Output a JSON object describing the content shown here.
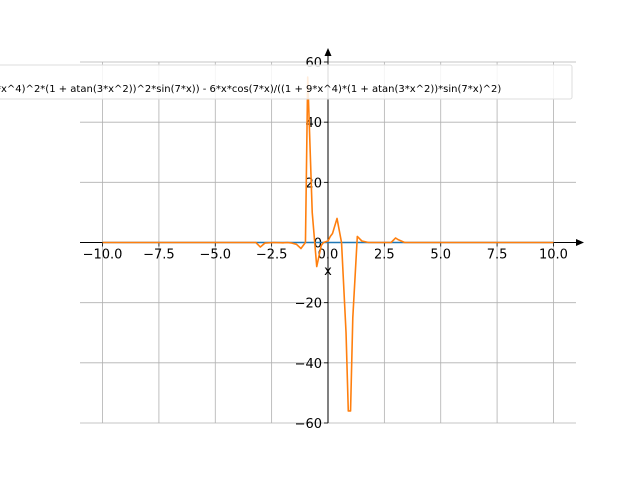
{
  "chart_data": {
    "type": "line",
    "title": "",
    "xlabel": "x",
    "ylabel": "",
    "xlim": [
      -11.0,
      11.0
    ],
    "ylim": [
      -60,
      60
    ],
    "grid": true,
    "legend_position": "top",
    "x_ticks": [
      -10.0,
      -7.5,
      -5.0,
      -2.5,
      0.0,
      2.5,
      5.0,
      7.5,
      10.0
    ],
    "x_tick_labels": [
      "−10.0",
      "−7.5",
      "−5.0",
      "−2.5",
      "0.0",
      "2.5",
      "5.0",
      "7.5",
      "10.0"
    ],
    "y_ticks": [
      -60,
      -40,
      -20,
      0,
      20,
      40,
      60
    ],
    "y_tick_labels": [
      "−60",
      "−40",
      "−20",
      "0",
      "20",
      "40",
      "60"
    ],
    "legend_text": "*x^4)^2*(1 + atan(3*x^2))^2*sin(7*x)) - 6*x*cos(7*x)/((1 + 9*x^4)*(1 + atan(3*x^2))*sin(7*x)^2)",
    "series": [
      {
        "color": "#1f77b4",
        "x": [
          -10,
          -5,
          -1.5,
          -1,
          -0.5,
          0,
          0.5,
          1,
          1.5,
          5,
          10
        ],
        "y": [
          0,
          0,
          0,
          0,
          0,
          0,
          0,
          0,
          0,
          0,
          0
        ]
      },
      {
        "color": "#ff7f0e",
        "x": [
          -10,
          -4,
          -3.2,
          -3.0,
          -2.8,
          -2.4,
          -2.0,
          -1.8,
          -1.6,
          -1.4,
          -1.2,
          -1.0,
          -0.9,
          -0.7,
          -0.5,
          -0.3,
          -0.2,
          0.0,
          0.1,
          0.2,
          0.4,
          0.6,
          0.8,
          0.9,
          1.0,
          1.1,
          1.3,
          1.5,
          1.8,
          2.2,
          2.8,
          3.0,
          3.1,
          3.4,
          4.0,
          10
        ],
        "y": [
          0,
          0,
          0,
          -1.5,
          -0.2,
          0,
          -0.1,
          0,
          -0.2,
          -0.6,
          -2.0,
          0,
          55,
          10,
          -8,
          -1,
          0,
          0.5,
          2,
          3,
          8,
          0,
          -30,
          -56,
          -56,
          -25,
          2,
          0.5,
          0,
          0,
          0,
          1.5,
          1.0,
          0,
          0,
          0
        ]
      }
    ]
  }
}
